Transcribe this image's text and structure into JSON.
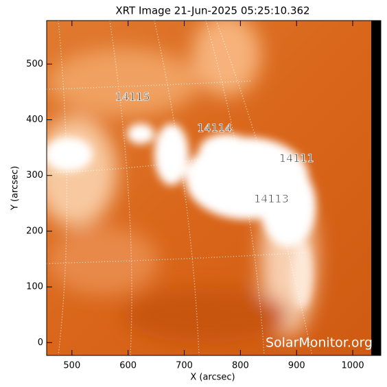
{
  "chart_data": {
    "type": "image",
    "title": "XRT Image 21-Jun-2025 05:25:10.362",
    "x_label": "X (arcsec)",
    "y_label": "Y (arcsec)",
    "xlim": [
      455,
      1050
    ],
    "ylim": [
      -23,
      578
    ],
    "xticks": [
      500,
      600,
      700,
      800,
      900,
      1000
    ],
    "yticks": [
      0,
      100,
      200,
      300,
      400,
      500
    ],
    "annotations": [
      {
        "text": "14115",
        "x": 608,
        "y": 440
      },
      {
        "text": "14114",
        "x": 754,
        "y": 384
      },
      {
        "text": "14111",
        "x": 900,
        "y": 330
      },
      {
        "text": "14113",
        "x": 855,
        "y": 257
      }
    ],
    "watermark": "SolarMonitor.org"
  }
}
